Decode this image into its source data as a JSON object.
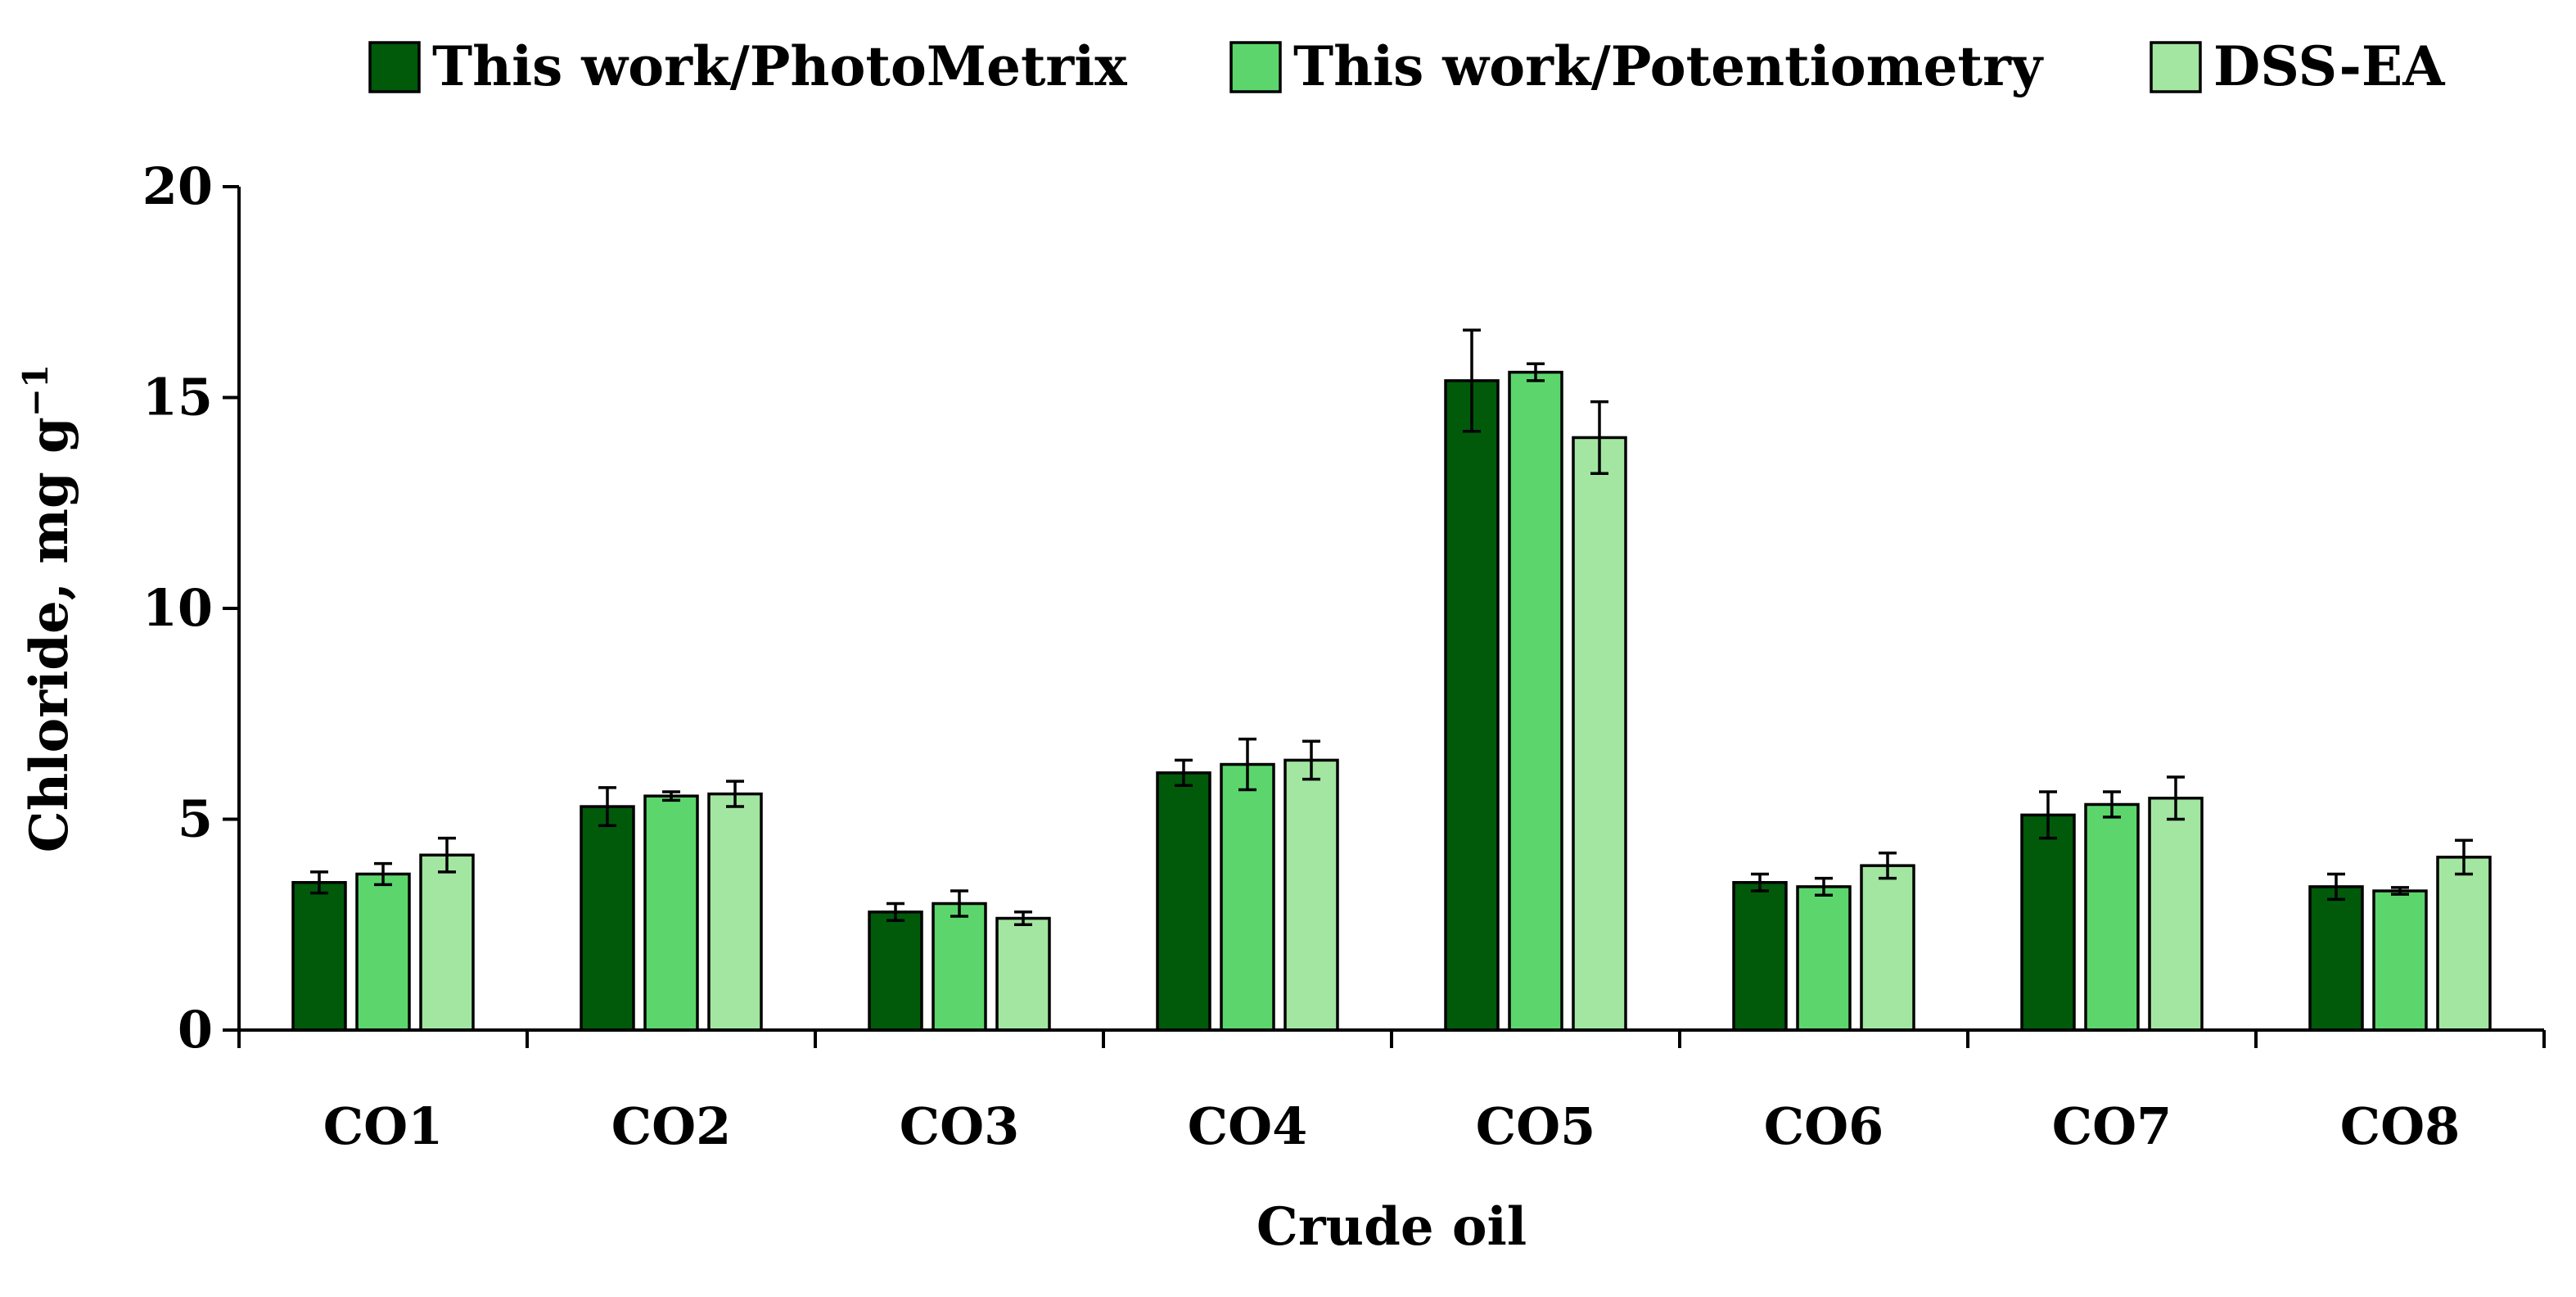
{
  "chart_data": {
    "type": "bar",
    "categories": [
      "CO1",
      "CO2",
      "CO3",
      "CO4",
      "CO5",
      "CO6",
      "CO7",
      "CO8"
    ],
    "series": [
      {
        "name": "This work/PhotoMetrix",
        "color": "#005a0a",
        "values": [
          3.5,
          5.3,
          2.8,
          6.1,
          15.4,
          3.5,
          5.1,
          3.4
        ],
        "errors": [
          0.25,
          0.45,
          0.2,
          0.3,
          1.2,
          0.2,
          0.55,
          0.3
        ]
      },
      {
        "name": "This work/Potentiometry",
        "color": "#5cd66c",
        "values": [
          3.7,
          5.55,
          3.0,
          6.3,
          15.6,
          3.4,
          5.35,
          3.3
        ],
        "errors": [
          0.25,
          0.1,
          0.3,
          0.6,
          0.2,
          0.2,
          0.3,
          0.08
        ]
      },
      {
        "name": "DSS-EA",
        "color": "#a3e6a1",
        "values": [
          4.15,
          5.6,
          2.65,
          6.4,
          14.05,
          3.9,
          5.5,
          4.1
        ],
        "errors": [
          0.4,
          0.3,
          0.15,
          0.45,
          0.85,
          0.3,
          0.5,
          0.4
        ]
      }
    ],
    "xlabel": "Crude oil",
    "ylabel": "Chloride, mg g",
    "ylabel_sup": "−1",
    "ylim": [
      0,
      20
    ],
    "yticks": [
      0,
      5,
      10,
      15,
      20
    ],
    "legend_position": "top",
    "grid": false
  }
}
